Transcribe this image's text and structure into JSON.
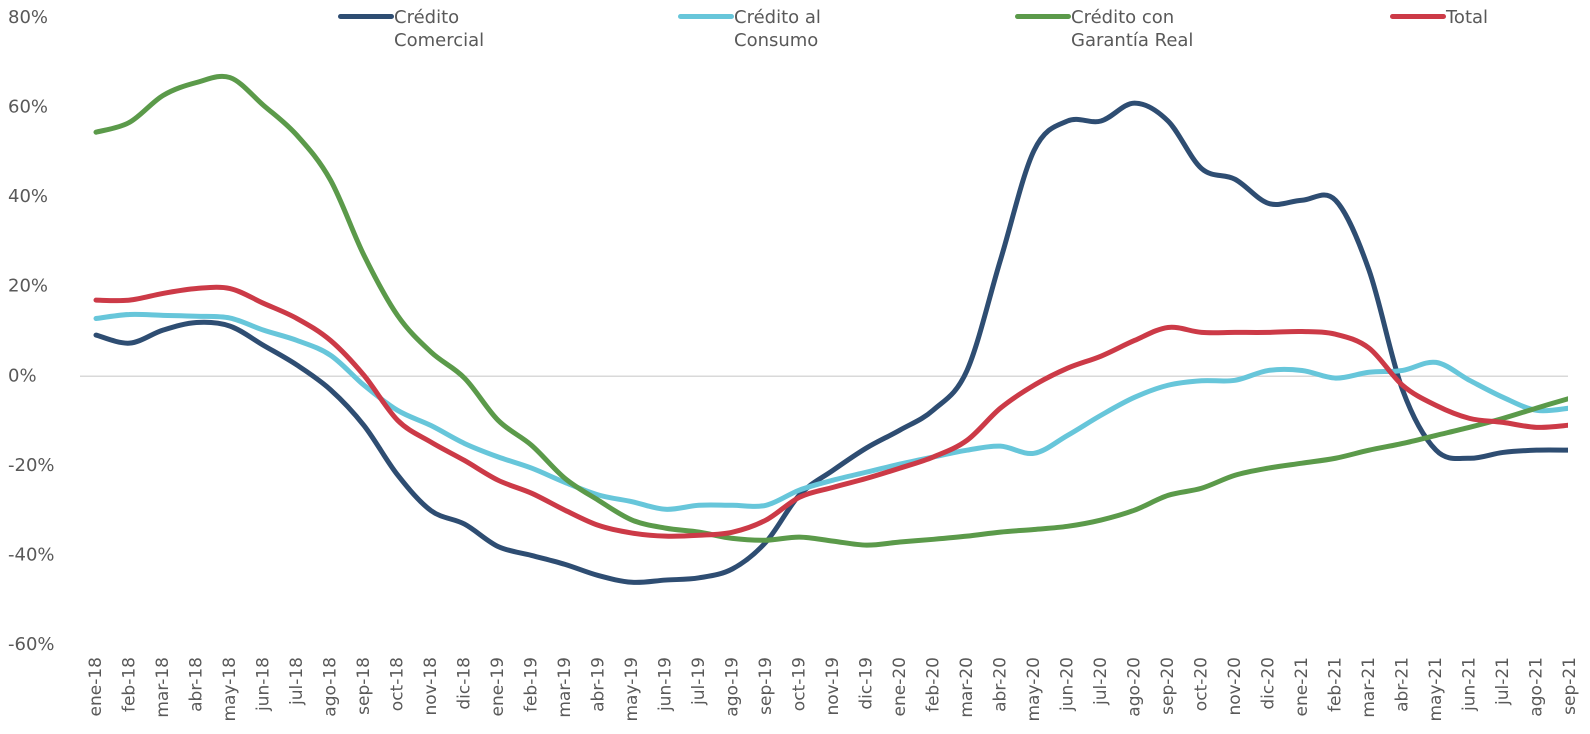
{
  "chart_data": {
    "type": "line",
    "categories": [
      "ene-18",
      "feb-18",
      "mar-18",
      "abr-18",
      "may-18",
      "jun-18",
      "jul-18",
      "ago-18",
      "sep-18",
      "oct-18",
      "nov-18",
      "dic-18",
      "ene-19",
      "feb-19",
      "mar-19",
      "abr-19",
      "may-19",
      "jun-19",
      "jul-19",
      "ago-19",
      "sep-19",
      "oct-19",
      "nov-19",
      "dic-19",
      "ene-20",
      "feb-20",
      "mar-20",
      "abr-20",
      "may-20",
      "jun-20",
      "jul-20",
      "ago-20",
      "sep-20",
      "oct-20",
      "nov-20",
      "dic-20",
      "ene-21",
      "feb-21",
      "mar-21",
      "abr-21",
      "may-21",
      "jun-21",
      "jul-21",
      "ago-21",
      "sep-21"
    ],
    "series": [
      {
        "name": "Crédito Comercial",
        "color": "#2e4d72",
        "values": [
          9.2,
          7.4,
          10.3,
          12,
          11.2,
          6.9,
          2.5,
          -3,
          -11,
          -22,
          -30,
          -33,
          -38,
          -40,
          -42,
          -44.5,
          -46,
          -45.5,
          -45,
          -43,
          -37,
          -26.5,
          -21,
          -16,
          -12,
          -7.5,
          1.3,
          26,
          50.4,
          57,
          57,
          61,
          57,
          46.4,
          44,
          38.6,
          39.3,
          39.3,
          23.7,
          -3,
          -16.5,
          -18.3,
          -17,
          -16.5,
          -16.5
        ]
      },
      {
        "name": "Crédito al Consumo",
        "color": "#67c6da",
        "values": [
          12.9,
          13.8,
          13.6,
          13.4,
          13,
          10.3,
          8,
          4.7,
          -2,
          -7.6,
          -11,
          -15,
          -18,
          -20.5,
          -23.7,
          -26.5,
          -28,
          -29.7,
          -28.8,
          -28.8,
          -28.8,
          -25.4,
          -23.2,
          -21.4,
          -19.6,
          -18,
          -16.5,
          -15.6,
          -17.2,
          -13.2,
          -8.7,
          -4.7,
          -2,
          -1,
          -0.9,
          1.3,
          1.3,
          -0.4,
          0.9,
          1.3,
          3.1,
          -0.9,
          -4.7,
          -7.6,
          -7.1
        ]
      },
      {
        "name": "Crédito con Garantía Real",
        "color": "#5b9a4a",
        "values": [
          54.5,
          56.7,
          62.7,
          65.6,
          66.7,
          60.5,
          53.8,
          43.8,
          27,
          13.6,
          5.4,
          -0.4,
          -9.8,
          -15.4,
          -22.8,
          -27.7,
          -32.1,
          -33.9,
          -34.8,
          -36.2,
          -36.6,
          -35.9,
          -36.8,
          -37.7,
          -37,
          -36.4,
          -35.7,
          -34.8,
          -34.2,
          -33.5,
          -32.1,
          -29.9,
          -26.6,
          -25,
          -22.1,
          -20.5,
          -19.4,
          -18.3,
          -16.5,
          -15,
          -13.2,
          -11.4,
          -9.4,
          -7.1,
          -4.9
        ]
      },
      {
        "name": "Total",
        "color": "#cc3a47",
        "values": [
          17,
          17,
          18.5,
          19.6,
          19.6,
          16.3,
          12.9,
          8,
          0.2,
          -9.8,
          -14.7,
          -18.8,
          -23.2,
          -26.1,
          -29.9,
          -33.3,
          -35,
          -35.7,
          -35.5,
          -34.8,
          -32.1,
          -27,
          -24.8,
          -22.8,
          -20.5,
          -18,
          -14.3,
          -7.1,
          -2,
          1.8,
          4.5,
          8,
          10.9,
          9.8,
          9.8,
          9.8,
          10,
          9.4,
          6.3,
          -2,
          -6.5,
          -9.4,
          -10.3,
          -11.4,
          -10.9
        ]
      }
    ],
    "ylim": [
      -60,
      80
    ],
    "yticks": [
      {
        "value": -60,
        "label": "-60%"
      },
      {
        "value": -40,
        "label": "-40%"
      },
      {
        "value": -20,
        "label": "-20%"
      },
      {
        "value": 0,
        "label": "0%"
      },
      {
        "value": 20,
        "label": "20%"
      },
      {
        "value": 40,
        "label": "40%"
      },
      {
        "value": 60,
        "label": "60%"
      },
      {
        "value": 80,
        "label": "80%"
      }
    ],
    "grid": false,
    "legend": "top"
  }
}
